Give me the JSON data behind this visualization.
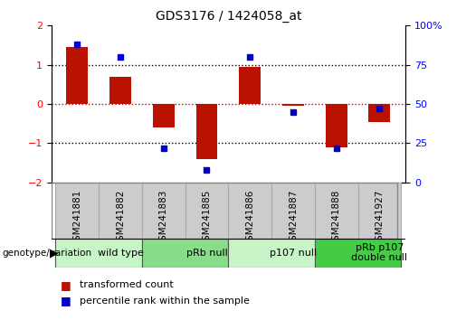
{
  "title": "GDS3176 / 1424058_at",
  "samples": [
    "GSM241881",
    "GSM241882",
    "GSM241883",
    "GSM241885",
    "GSM241886",
    "GSM241887",
    "GSM241888",
    "GSM241927"
  ],
  "red_bars": [
    1.45,
    0.7,
    -0.6,
    -1.4,
    0.95,
    -0.05,
    -1.1,
    -0.45
  ],
  "blue_dot_percentiles": [
    88,
    80,
    22,
    8,
    80,
    45,
    22,
    47
  ],
  "groups": [
    {
      "label": "wild type",
      "start": 0,
      "end": 2,
      "color": "#c8f5c8"
    },
    {
      "label": "pRb null",
      "start": 2,
      "end": 4,
      "color": "#88dd88"
    },
    {
      "label": "p107 null",
      "start": 4,
      "end": 6,
      "color": "#c8f5c8"
    },
    {
      "label": "pRb p107\ndouble null",
      "start": 6,
      "end": 8,
      "color": "#44cc44"
    }
  ],
  "ylim": [
    -2,
    2
  ],
  "yticks_left": [
    -2,
    -1,
    0,
    1,
    2
  ],
  "yticks_right": [
    0,
    25,
    50,
    75,
    100
  ],
  "bar_color": "#bb1100",
  "dot_color": "#0000cc",
  "bar_width": 0.5,
  "legend_label_red": "transformed count",
  "legend_label_blue": "percentile rank within the sample",
  "sample_box_color": "#cccccc",
  "sample_box_edge": "#aaaaaa",
  "group_border_color": "#555555",
  "red_zero_color": "#cc0000"
}
